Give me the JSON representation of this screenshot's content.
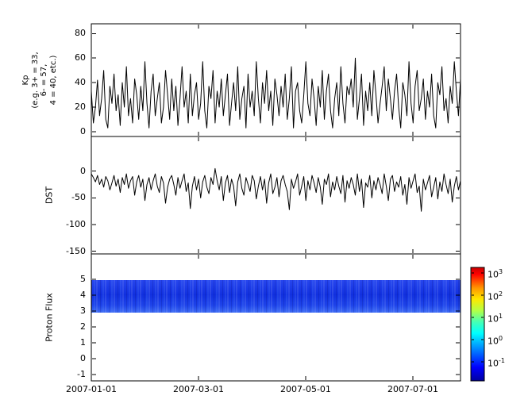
{
  "figure": {
    "background": "#ffffff",
    "line_color": "#000000"
  },
  "xaxis": {
    "tick_labels": [
      "2007-01-01",
      "2007-03-01",
      "2007-05-01",
      "2007-07-01"
    ]
  },
  "chart_data": [
    {
      "type": "line",
      "name": "kp-index",
      "title": "",
      "ylabel": "Kp (e.g. 3+ = 33, 6- = 57, 4 = 40, etc.)",
      "ylabel_lines": [
        "Kp",
        "(e.g. 3+ = 33,",
        "6- = 57,",
        "4 = 40, etc.)"
      ],
      "ylim": [
        -4,
        88
      ],
      "yticks": [
        80,
        60,
        40,
        20,
        0
      ],
      "x_range": [
        "2007-01-01",
        "2007-07-23"
      ],
      "grid": false,
      "series": [
        {
          "name": "Kp",
          "color": "#000000",
          "values": [
            33,
            7,
            20,
            42,
            13,
            27,
            50,
            10,
            3,
            37,
            23,
            47,
            17,
            30,
            5,
            40,
            20,
            53,
            13,
            27,
            7,
            43,
            30,
            10,
            37,
            17,
            57,
            23,
            3,
            33,
            47,
            13,
            27,
            40,
            7,
            20,
            50,
            30,
            10,
            43,
            17,
            37,
            5,
            27,
            53,
            20,
            33,
            7,
            47,
            13,
            30,
            40,
            10,
            23,
            57,
            17,
            3,
            37,
            27,
            50,
            7,
            33,
            20,
            43,
            13,
            30,
            47,
            5,
            23,
            40,
            17,
            53,
            10,
            27,
            37,
            3,
            47,
            20,
            33,
            13,
            57,
            27,
            7,
            40,
            23,
            50,
            17,
            33,
            5,
            43,
            30,
            13,
            37,
            20,
            47,
            10,
            27,
            53,
            3,
            33,
            40,
            17,
            7,
            30,
            57,
            23,
            13,
            43,
            27,
            5,
            37,
            20,
            50,
            10,
            33,
            47,
            17,
            3,
            27,
            40,
            13,
            53,
            23,
            7,
            37,
            30,
            43,
            20,
            60,
            10,
            27,
            47,
            5,
            33,
            17,
            40,
            13,
            50,
            30,
            7,
            23,
            37,
            53,
            17,
            43,
            27,
            10,
            33,
            47,
            20,
            3,
            40,
            30,
            13,
            57,
            23,
            7,
            37,
            50,
            17,
            27,
            43,
            10,
            33,
            20,
            47,
            13,
            3,
            40,
            30,
            53,
            17,
            27,
            7,
            37,
            23,
            57,
            33,
            13,
            43
          ]
        }
      ]
    },
    {
      "type": "line",
      "name": "dst-index",
      "title": "",
      "ylabel": "DST",
      "ylabel_lines": [
        "DST"
      ],
      "ylim": [
        -155,
        65
      ],
      "yticks": [
        0,
        -50,
        -100,
        -150
      ],
      "x_range": [
        "2007-01-01",
        "2007-07-23"
      ],
      "grid": false,
      "series": [
        {
          "name": "DST",
          "color": "#000000",
          "values": [
            -5,
            -12,
            -20,
            -8,
            -25,
            -15,
            -30,
            -10,
            -18,
            -35,
            -22,
            -8,
            -28,
            -15,
            -40,
            -12,
            -25,
            -5,
            -32,
            -18,
            -10,
            -45,
            -20,
            -8,
            -30,
            -15,
            -55,
            -25,
            -12,
            -35,
            -18,
            -5,
            -28,
            -40,
            -10,
            -22,
            -60,
            -30,
            -15,
            -8,
            -25,
            -45,
            -12,
            -32,
            -18,
            -5,
            -38,
            -22,
            -70,
            -28,
            -10,
            -35,
            -15,
            -50,
            -20,
            -8,
            -30,
            -42,
            -12,
            -25,
            5,
            -18,
            -35,
            -10,
            -55,
            -22,
            -8,
            -40,
            -15,
            -28,
            -65,
            -20,
            -5,
            -32,
            -45,
            -12,
            -25,
            -38,
            -8,
            -18,
            -52,
            -28,
            -10,
            -35,
            -15,
            -60,
            -22,
            -5,
            -42,
            -30,
            -12,
            -48,
            -18,
            -8,
            -25,
            -38,
            -72,
            -15,
            -32,
            -20,
            -5,
            -45,
            -28,
            -10,
            -55,
            -18,
            -35,
            -8,
            -22,
            -40,
            -12,
            -30,
            -62,
            -15,
            -25,
            -5,
            -48,
            -20,
            -35,
            -10,
            -28,
            -42,
            -8,
            -58,
            -18,
            -32,
            -12,
            -25,
            -45,
            -5,
            -38,
            -15,
            -68,
            -22,
            -30,
            -8,
            -50,
            -18,
            -35,
            -12,
            -25,
            -42,
            -5,
            -28,
            -55,
            -15,
            -8,
            -38,
            -20,
            -30,
            -10,
            -45,
            -25,
            -62,
            -12,
            -32,
            -18,
            -5,
            -40,
            -28,
            -75,
            -15,
            -35,
            -22,
            -8,
            -48,
            -30,
            -12,
            -52,
            -20,
            -38,
            -5,
            -25,
            -42,
            -15,
            -58,
            -28,
            -10,
            -35,
            -18
          ]
        }
      ]
    },
    {
      "type": "heatmap",
      "name": "proton-flux",
      "title": "",
      "ylabel": "Proton Flux",
      "ylabel_lines": [
        "Proton Flux"
      ],
      "ylim": [
        -1.4,
        6.6
      ],
      "yticks": [
        5,
        4,
        3,
        2,
        1,
        0,
        -1
      ],
      "x_range": [
        "2007-01-01",
        "2007-07-23"
      ],
      "grid": false,
      "band": {
        "y_min": 2.9,
        "y_max": 4.95,
        "approx_value": "~10^-1 (blue, low flux)"
      },
      "colorbar": {
        "scale": "log",
        "tick_exponents": [
          3,
          2,
          1,
          0,
          -1
        ],
        "tick_labels": [
          "10^3",
          "10^2",
          "10^1",
          "10^0",
          "10^-1"
        ],
        "gradient": [
          {
            "o": 0,
            "c": "#c80000"
          },
          {
            "o": 0.06,
            "c": "#ff0000"
          },
          {
            "o": 0.18,
            "c": "#ff9500"
          },
          {
            "o": 0.28,
            "c": "#ffe800"
          },
          {
            "o": 0.38,
            "c": "#b4ff46"
          },
          {
            "o": 0.48,
            "c": "#46ffb4"
          },
          {
            "o": 0.58,
            "c": "#00ffff"
          },
          {
            "o": 0.68,
            "c": "#00a8ff"
          },
          {
            "o": 0.78,
            "c": "#0054ff"
          },
          {
            "o": 0.88,
            "c": "#0000ff"
          },
          {
            "o": 1,
            "c": "#0000a0"
          }
        ],
        "band_colors": {
          "top": "#2746ee",
          "mid": "#1130e0",
          "low": "#1e44ea",
          "bottom": "#3f6cf4"
        }
      }
    }
  ]
}
